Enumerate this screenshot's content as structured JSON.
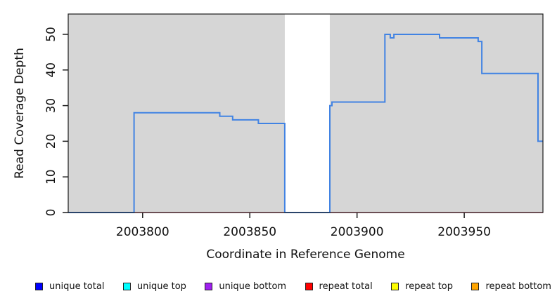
{
  "figure": {
    "x_axis_title": "Coordinate in Reference Genome",
    "y_axis_title": "Read Coverage Depth"
  },
  "chart_data": {
    "type": "line",
    "subtype": "step-coverage",
    "title": "",
    "xlabel": "Coordinate in Reference Genome",
    "ylabel": "Read Coverage Depth",
    "xlim": [
      2003765.3,
      2003986.7
    ],
    "ylim": [
      0,
      55.7
    ],
    "xticks": [
      2003800,
      2003850,
      2003900,
      2003950
    ],
    "yticks": [
      0,
      10,
      20,
      30,
      40,
      50
    ],
    "grid": false,
    "plot_background_color": "#ffffff",
    "shaded_region_color": "#d6d6d6",
    "shaded_regions": [
      [
        2003765.3,
        2003866.3
      ],
      [
        2003887.3,
        2003986.7
      ]
    ],
    "gap_region": [
      2003866.3,
      2003887.3
    ],
    "series": [
      {
        "name": "repeat total",
        "color": "#df536b",
        "line_width": 1.6,
        "points": [
          [
            2003765.3,
            0
          ],
          [
            2003986.7,
            0
          ]
        ]
      },
      {
        "name": "unique total",
        "color": "#4183e3",
        "line_width": 2,
        "points": [
          [
            2003765.3,
            0
          ],
          [
            2003796,
            0
          ],
          [
            2003796,
            28
          ],
          [
            2003836,
            28
          ],
          [
            2003836,
            27
          ],
          [
            2003842,
            27
          ],
          [
            2003842,
            26
          ],
          [
            2003854,
            26
          ],
          [
            2003854,
            25
          ],
          [
            2003866.3,
            25
          ],
          [
            2003866.3,
            0
          ],
          [
            2003887.3,
            0
          ],
          [
            2003887.3,
            30
          ],
          [
            2003888.3,
            30
          ],
          [
            2003888.3,
            31
          ],
          [
            2003913,
            31
          ],
          [
            2003913,
            50
          ],
          [
            2003915.5,
            50
          ],
          [
            2003915.5,
            49
          ],
          [
            2003917.2,
            49
          ],
          [
            2003917.2,
            50
          ],
          [
            2003938.5,
            50
          ],
          [
            2003938.5,
            49
          ],
          [
            2003956.5,
            49
          ],
          [
            2003956.5,
            48
          ],
          [
            2003958.2,
            48
          ],
          [
            2003958.2,
            39
          ],
          [
            2003984.4,
            39
          ],
          [
            2003984.4,
            20
          ],
          [
            2003986.7,
            20
          ]
        ]
      }
    ],
    "legend_position": "bottom",
    "legend": [
      {
        "label": "unique total",
        "color": "#0000ff"
      },
      {
        "label": "unique top",
        "color": "#00ffff"
      },
      {
        "label": "unique bottom",
        "color": "#a020f0"
      },
      {
        "label": "repeat total",
        "color": "#ff0000"
      },
      {
        "label": "repeat top",
        "color": "#ffff00"
      },
      {
        "label": "repeat bottom",
        "color": "#ffa500"
      }
    ]
  },
  "layout_colors": {
    "axis_frame": "#1a1a1a",
    "tick_label": "#111111"
  }
}
